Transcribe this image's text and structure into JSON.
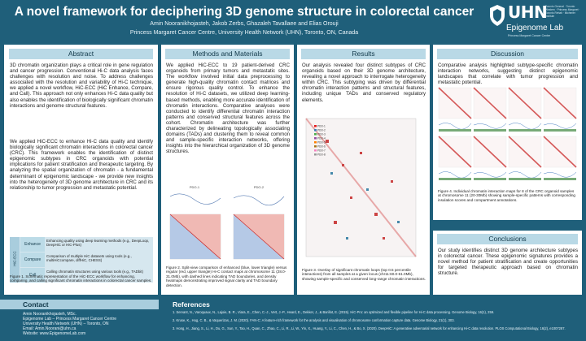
{
  "header": {
    "title": "A novel framework for deciphering 3D genome structure in colorectal cancer",
    "authors": "Amin Nooranikhojasteh, Jakob Zerbs, Ghazaleh Tavallaee and Elias Orouji",
    "affiliation": "Princess Margaret Cancer Centre, University Health Network (UHN), Toronto, ON, Canada",
    "logo_text": "UHN",
    "logo_small": "Toronto General · Toronto Western · Princess Margaret · Toronto Rehab · Michener Institute",
    "logo_lab": "Epigenome Lab",
    "logo_sub": "Princess Margaret Cancer Centre"
  },
  "abstract": {
    "heading": "Abstract",
    "p1": "3D chromatin organization plays a critical role in gene regulation and cancer progression. Conventional Hi-C data analysis faces challenges with resolution and noise. To address challenges associated with the resolution and variability of Hi-C technique, we applied a novel workflow, HiC-ECC (HiC Enhance, Compare, and Call). This approach not only enhances Hi-C data quality but also enables the identification of biologically significant chromatin interactions and genome structural features.",
    "p2": "We applied HiC-ECC to enhance Hi-C data quality and identify biologically significant chromatin interactions in colorectal cancer (CRC). This framework enables the identification of distinct epigenomic subtypes in CRC organoids with potential implications for patient stratification and therapeutic targeting. By analyzing the spatial organization of chromatin - a fundamental determinant of epigenomic landscape - we provide new insights into the heterogeneity of 3D genome architecture in CRC and its relationship to tumor progression and metastatic potential.",
    "table_side": "HiC-ECC",
    "rows": [
      {
        "key": "Enhance",
        "value": "Enhancing quality using deep learning methods (e.g., DeepLoop, DeepHiC or HiC-Plus)"
      },
      {
        "key": "Compare",
        "value": "Comparison of multiple HiC datasets using tools (e.g., multiHiCcompare, diffHiC, CHESS)"
      },
      {
        "key": "Call",
        "value": "Calling chromatin structures using various tools (e.g., TADbit)"
      }
    ],
    "caption": "Figure 1. Schematic representation of the HiC-ECC workflow for enhancing, comparing, and calling significant chromatin interactions in colorectal cancer samples."
  },
  "methods": {
    "heading": "Methods and Materials",
    "p1": "We applied HiC-ECC to 19 patient-derived CRC organoids from primary tumors and metastatic sites. The workflow involved initial data preprocessing to generate high-quality chromatin contact matrices and ensure rigorous quality control. To enhance the resolution of Hi-C datasets, we utilized deep learning-based methods, enabling more accurate identification of chromatin interactions. Comparative analyses were conducted to identify differential chromatin interaction patterns and conserved structural features across the cohort. Chromatin architecture was further characterized by delineating topologically associating domains (TADs) and clustering them to reveal common and sample-specific interaction networks, offering insights into the hierarchical organization of 3D genome structures.",
    "fig_left_label": "PDO-1",
    "fig_right_label": "PDO-2",
    "caption": "Figure 2. Split-view comparison of enhanced (blue, lower triangle) versus regular (red, upper triangle) Hi-C contact maps at chromosome 11 (28.0-31.0Mb), with dashed lines indicating TAD boundaries, and density heatmaps demonstrating improved signal clarity and TAD boundary detection."
  },
  "results": {
    "heading": "Results",
    "p1": "Our analysis revealed four distinct subtypes of CRC organoids based on their 3D genome architecture, revealing a novel approach to interrogate heterogeneity within CRC. This subtyping was driven by differential chromatin interaction patterns and structural features, including unique TADs and conserved regulatory elements.",
    "legend": [
      "PDO-1",
      "PDO-2",
      "PDO-3",
      "PDO-4",
      "PDO-5",
      "PDO-6",
      "PDO-7",
      "PDO-8"
    ],
    "caption": "Figure 3. Overlay of significant chromatin loops (top 0.5 percentile interactions) from all samples at a given locus (chr11:60.0-61.0Mb), showing sample-specific and conserved long-range chromatin interactions."
  },
  "discussion": {
    "heading": "Discussion",
    "p1": "Comparative analysis highlighted subtype-specific chromatin interaction networks, suggesting distinct epigenomic landscapes that correlate with tumor progression and metastatic potential.",
    "caption": "Figure 4. Individual chromatin interaction maps for 8 of the CRC organoid samples at chromosome 11 (20-30Mb) showing sample-specific patterns with corresponding insulation scores and compartment annotations."
  },
  "conclusions": {
    "heading": "Conclusions",
    "p1": "Our study identifies distinct 3D genome architecture subtypes in colorectal cancer. These epigenomic signatures provides a novel method for patient stratification and create opportunities for targeted therapeutic approach based on chromatin structure."
  },
  "contact": {
    "heading": "Contact",
    "lines": [
      "Amin Nooranikhojasteh, MSc.",
      "Epigenome Lab – Princess Margaret Cancer Centre",
      "University Health Network (UHN) – Toronto, ON",
      "Email: Amin.Noorani@uhn.ca",
      "Website: www.EpigenomeLab.com"
    ]
  },
  "references": {
    "heading": "References",
    "items": [
      "1. Servant, N., Varoquaux, N., Lajoie, B. R., Viara, E., Chen, C.-J., Vert, J.-P., Heard, E., Dekker, J., & Barillot, E. (2015). HiC-Pro: an optimized and flexible pipeline for Hi-C data processing. Genome Biology, 16(1), 259.",
      "2. Kruse, K., Hug, C. B., & Vaquerizas, J. M. (2020). FAN-C: A feature-rich framework for the analysis and visualisation of chromosome conformation capture data. Genome Biology, 21(1), 303.",
      "3. Hong, H., Jiang, S., Li, H., Du, G., Sun, Y., Tao, H., Quan, C., Zhao, C., Li, R., Li, W., Yin, X., Huang, Y., Li, C., Chen, H., & Bo, X. (2020). DeepHiC: A generative adversarial network for enhancing Hi-C data resolution. PLOS Computational Biology, 16(2), e1007287."
    ]
  },
  "colors": {
    "header": "#1f5f7a",
    "section_head": "#b9d9e6",
    "panel": "#ffffff"
  }
}
